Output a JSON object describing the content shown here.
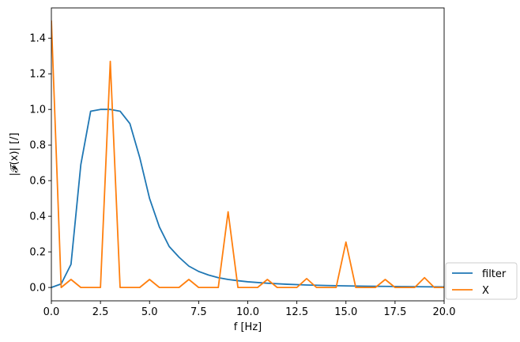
{
  "chart_data": {
    "type": "line",
    "xlabel": "f [Hz]",
    "ylabel": "|𝓕(x)| [/]",
    "xlim": [
      0,
      20
    ],
    "ylim": [
      -0.075,
      1.57
    ],
    "xticks": [
      0.0,
      2.5,
      5.0,
      7.5,
      10.0,
      12.5,
      15.0,
      17.5,
      20.0
    ],
    "xtick_labels": [
      "0.0",
      "2.5",
      "5.0",
      "7.5",
      "10.0",
      "12.5",
      "15.0",
      "17.5",
      "20.0"
    ],
    "yticks": [
      0.0,
      0.2,
      0.4,
      0.6,
      0.8,
      1.0,
      1.2,
      1.4
    ],
    "ytick_labels": [
      "0.0",
      "0.2",
      "0.4",
      "0.6",
      "0.8",
      "1.0",
      "1.2",
      "1.4"
    ],
    "grid": false,
    "legend_position": "outside-bottom-right",
    "series": [
      {
        "name": "filter",
        "color": "#1f77b4",
        "x": [
          0,
          0.5,
          1,
          1.5,
          2,
          2.5,
          3,
          3.5,
          4,
          4.5,
          5,
          5.5,
          6,
          6.5,
          7,
          7.5,
          8,
          8.5,
          9,
          9.5,
          10,
          11,
          12,
          13,
          14,
          15,
          16,
          17,
          18,
          19,
          20
        ],
        "y": [
          0.0,
          0.02,
          0.13,
          0.69,
          0.99,
          1.0,
          1.0,
          0.99,
          0.92,
          0.73,
          0.5,
          0.34,
          0.23,
          0.17,
          0.12,
          0.09,
          0.07,
          0.055,
          0.045,
          0.038,
          0.032,
          0.024,
          0.018,
          0.014,
          0.011,
          0.009,
          0.007,
          0.006,
          0.005,
          0.004,
          0.003
        ]
      },
      {
        "name": "X",
        "color": "#ff7f0e",
        "x": [
          0,
          0.5,
          1,
          1.5,
          2,
          2.5,
          3,
          3.5,
          4,
          4.5,
          5,
          5.5,
          6,
          6.5,
          7,
          7.5,
          8,
          8.5,
          9,
          9.5,
          10,
          10.5,
          11,
          11.5,
          12,
          12.5,
          13,
          13.5,
          14,
          14.5,
          15,
          15.5,
          16,
          16.5,
          17,
          17.5,
          18,
          18.5,
          19,
          19.5,
          20
        ],
        "y": [
          1.5,
          0.0,
          0.045,
          0.0,
          0.0,
          0.0,
          1.27,
          0.0,
          0.0,
          0.0,
          0.045,
          0.0,
          0.0,
          0.0,
          0.045,
          0.0,
          0.0,
          0.0,
          0.425,
          0.0,
          0.0,
          0.0,
          0.045,
          0.0,
          0.0,
          0.0,
          0.05,
          0.0,
          0.0,
          0.0,
          0.255,
          0.0,
          0.0,
          0.0,
          0.045,
          0.0,
          0.0,
          0.0,
          0.055,
          0.0,
          0.0
        ]
      }
    ]
  }
}
